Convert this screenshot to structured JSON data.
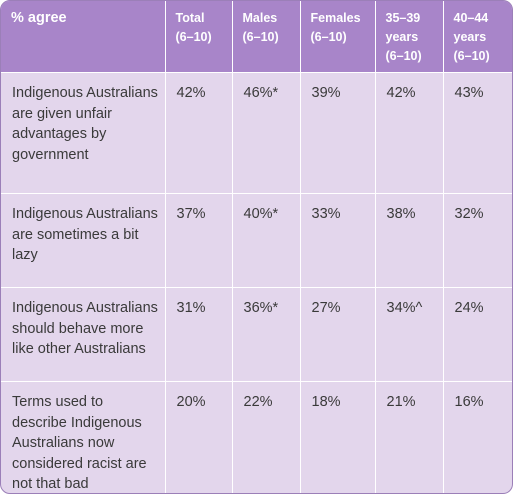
{
  "table": {
    "headers": [
      "% agree",
      "Total (6–10)",
      "Males (6–10)",
      "Females (6–10)",
      "35–39 years (6–10)",
      "40–44 years (6–10)"
    ],
    "rows": [
      {
        "label": "Indigenous Australians are given unfair advantages by government",
        "values": [
          "42%",
          "46%*",
          "39%",
          "42%",
          "43%"
        ]
      },
      {
        "label": "Indigenous Australians are sometimes a bit lazy",
        "values": [
          "37%",
          "40%*",
          "33%",
          "38%",
          "32%"
        ]
      },
      {
        "label": "Indigenous Australians should behave more like other Australians",
        "values": [
          "31%",
          "36%*",
          "27%",
          "34%^",
          "24%"
        ]
      },
      {
        "label": "Terms used to describe Indigenous Australians now considered racist are not that bad",
        "values": [
          "20%",
          "22%",
          "18%",
          "21%",
          "16%"
        ]
      }
    ]
  },
  "colors": {
    "header_bg": "#a885c9",
    "cell_bg": "#e3d6ec",
    "text": "#3a3a3a"
  }
}
